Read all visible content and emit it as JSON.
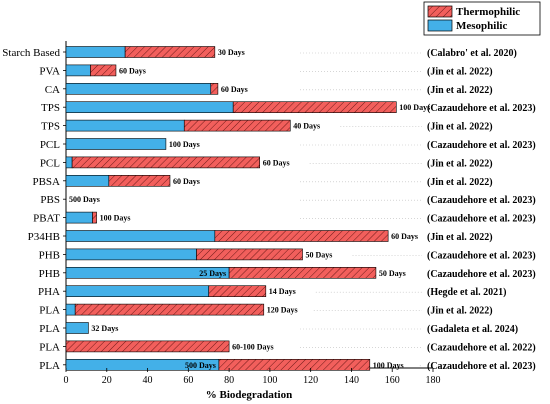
{
  "chart_data": {
    "type": "bar",
    "orientation": "horizontal",
    "stacked": true,
    "xlabel": "% Biodegradation",
    "xlim": [
      0,
      180
    ],
    "xticks": [
      0,
      20,
      40,
      60,
      80,
      100,
      120,
      140,
      160,
      180
    ],
    "grid": false,
    "legend_position": "top-right",
    "series": [
      {
        "name": "Thermophilic",
        "color": "#f25f5c",
        "pattern": "diagonal-hatch"
      },
      {
        "name": "Mesophilic",
        "color": "#43b0e8",
        "pattern": "solid"
      }
    ],
    "rows": [
      {
        "label": "Starch Based",
        "meso": 29,
        "thermo": 73,
        "duration": "30 Days",
        "ref": "(Calabro' et al. 2020)"
      },
      {
        "label": "PVA",
        "meso": 12,
        "thermo": 24.5,
        "duration": "60 Days",
        "ref": "(Jin et al. 2022)"
      },
      {
        "label": "CA",
        "meso": 71,
        "thermo": 74.5,
        "duration": "60 Days",
        "ref": "(Jin et al. 2022)"
      },
      {
        "label": "TPS",
        "meso": 82,
        "thermo": 162,
        "duration": "100 Days",
        "ref": "(Cazaudehore et al. 2023)"
      },
      {
        "label": "TPS",
        "meso": 58,
        "thermo": 110,
        "duration": "40 Days",
        "ref": "(Jin et al. 2022)"
      },
      {
        "label": "PCL",
        "meso": 49,
        "thermo": null,
        "duration": "100 Days",
        "ref": "(Cazaudehore et al. 2023)"
      },
      {
        "label": "PCL",
        "meso": 3,
        "thermo": 95,
        "duration": "60 Days",
        "ref": "(Jin et al. 2022)"
      },
      {
        "label": "PBSA",
        "meso": 21,
        "thermo": 51,
        "duration": "60 Days",
        "ref": "(Jin et al. 2022)"
      },
      {
        "label": "PBS",
        "meso": 0,
        "thermo": null,
        "duration": "500 Days",
        "ref": "(Cazaudehore et al. 2023)"
      },
      {
        "label": "PBAT",
        "meso": 13,
        "thermo": 15,
        "duration": "100 Days",
        "ref": "(Cazaudehore et al. 2023)"
      },
      {
        "label": "P34HB",
        "meso": 73,
        "thermo": 158,
        "duration": "60 Days",
        "ref": "(Jin et al. 2022)"
      },
      {
        "label": "PHB",
        "meso": 64,
        "thermo": 116,
        "duration": "50 Days",
        "ref": "(Cazaudehore et al. 2023)"
      },
      {
        "label": "PHB",
        "meso": 80,
        "thermo": 152,
        "duration": "50 Days",
        "ref": "(Cazaudehore et al. 2023)",
        "meso_label": "25 Days"
      },
      {
        "label": "PHA",
        "meso": 70,
        "thermo": 98,
        "duration": "14 Days",
        "ref": "(Hegde et al. 2021)"
      },
      {
        "label": "PLA",
        "meso": 4.5,
        "thermo": 97,
        "duration": "120 Days",
        "ref": "(Jin et al. 2022)"
      },
      {
        "label": "PLA",
        "meso": 11,
        "thermo": null,
        "duration": "32 Days",
        "ref": "(Gadaleta et al. 2024)"
      },
      {
        "label": "PLA",
        "meso": null,
        "thermo": 80,
        "duration": "60-100 Days",
        "ref": "(Cazaudehore et al. 2022)"
      },
      {
        "label": "PLA",
        "meso": 75,
        "thermo": 149,
        "duration": "100 Days",
        "ref": "(Cazaudehore et al. 2023)",
        "meso_label": "500 Days"
      }
    ]
  }
}
